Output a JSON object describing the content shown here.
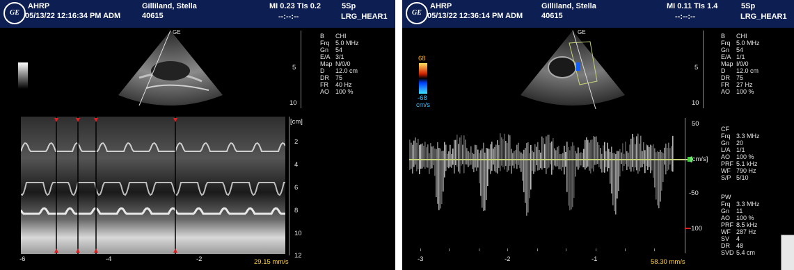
{
  "left": {
    "header": {
      "app": "AHRP",
      "datetime": "05/13/22 12:16:34 PM ADM",
      "patient": "Gilliland, Stella",
      "patient_id": "40615",
      "mi_tis": "MI 0.23  TIs 0.2",
      "probe": "5Sp",
      "time_placeholder": "--:--:--",
      "preset": "LRG_HEAR1"
    },
    "depth_marks": [
      "5",
      "10"
    ],
    "params": [
      {
        "k": "B",
        "v": "CHI"
      },
      {
        "k": "Frq",
        "v": "5.0 MHz"
      },
      {
        "k": "Gn",
        "v": "54"
      },
      {
        "k": "E/A",
        "v": "3/1"
      },
      {
        "k": "Map",
        "v": "N/0/0"
      },
      {
        "k": "D",
        "v": "12.0 cm"
      },
      {
        "k": "DR",
        "v": "75"
      },
      {
        "k": "FR",
        "v": "40 Hz"
      },
      {
        "k": "AO",
        "v": "100 %"
      }
    ],
    "mmode_unit": "[cm]",
    "y_ticks": [
      "2",
      "4",
      "6",
      "8",
      "10",
      "12"
    ],
    "x_ticks": [
      "-6",
      "-4",
      "-2"
    ],
    "sweep": "29.15 mm/s"
  },
  "right": {
    "header": {
      "app": "AHRP",
      "datetime": "05/13/22 12:36:14 PM ADM",
      "patient": "Gilliland, Stella",
      "patient_id": "40615",
      "mi_tis": "MI 0.11  TIs 1.4",
      "probe": "5Sp",
      "time_placeholder": "--:--:--",
      "preset": "LRG_HEAR1"
    },
    "color_scale_top": "68",
    "color_scale_bottom": "-68",
    "color_scale_unit": "cm/s",
    "depth_marks": [
      "5",
      "10"
    ],
    "params": [
      {
        "k": "B",
        "v": "CHI"
      },
      {
        "k": "Frq",
        "v": "5.0 MHz"
      },
      {
        "k": "Gn",
        "v": "54"
      },
      {
        "k": "E/A",
        "v": "1/1"
      },
      {
        "k": "Map",
        "v": "I/0/0"
      },
      {
        "k": "D",
        "v": "12.0 cm"
      },
      {
        "k": "DR",
        "v": "75"
      },
      {
        "k": "FR",
        "v": "27 Hz"
      },
      {
        "k": "AO",
        "v": "100 %"
      }
    ],
    "cf_params": [
      {
        "k": "CF",
        "v": ""
      },
      {
        "k": "Frq",
        "v": "3.3 MHz"
      },
      {
        "k": "Gn",
        "v": "20"
      },
      {
        "k": "L/A",
        "v": "1/1"
      },
      {
        "k": "AO",
        "v": "100 %"
      },
      {
        "k": "PRF",
        "v": "5.1 kHz"
      },
      {
        "k": "WF",
        "v": "790 Hz"
      },
      {
        "k": "S/P",
        "v": "5/10"
      }
    ],
    "pw_params": [
      {
        "k": "PW",
        "v": ""
      },
      {
        "k": "Frq",
        "v": "3.3 MHz"
      },
      {
        "k": "Gn",
        "v": "11"
      },
      {
        "k": "AO",
        "v": "100 %"
      },
      {
        "k": "PRF",
        "v": "8.5 kHz"
      },
      {
        "k": "WF",
        "v": "287 Hz"
      },
      {
        "k": "SV",
        "v": "4"
      },
      {
        "k": "DR",
        "v": "48"
      },
      {
        "k": "SVD",
        "v": "5.4 cm"
      }
    ],
    "velocity_unit": "[cm/s]",
    "y_ticks": [
      "50",
      "-50",
      "-100"
    ],
    "x_ticks": [
      "-3",
      "-2",
      "-1"
    ],
    "sweep": "58.30 mm/s"
  },
  "colors": {
    "header": "#0c1e52",
    "baseline": "#c8d27a",
    "marker": "#e02020"
  }
}
